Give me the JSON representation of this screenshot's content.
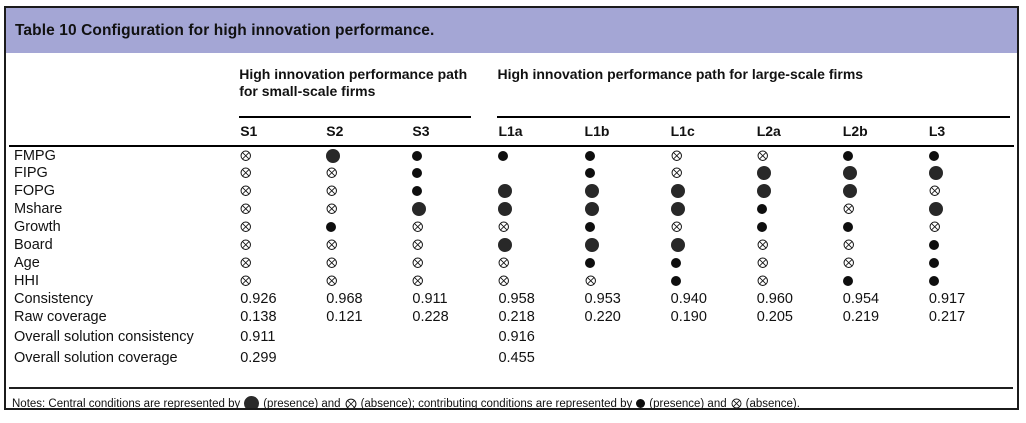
{
  "title": "Table 10 Configuration for high innovation performance.",
  "groups": [
    {
      "label": "High innovation performance path for small-scale firms",
      "span": 3
    },
    {
      "label": "High innovation performance path for large-scale firms",
      "span": 6
    }
  ],
  "columns": [
    "S1",
    "S2",
    "S3",
    "L1a",
    "L1b",
    "L1c",
    "L2a",
    "L2b",
    "L3"
  ],
  "symbol_legend": {
    "CP": "central-presence-icon",
    "CA": "central-absence-icon",
    "pp": "contributing-presence-icon",
    "pa": "contributing-absence-icon"
  },
  "rows": [
    {
      "label": "FMPG",
      "cells": [
        "pa",
        "CP",
        "pp",
        "pp",
        "pp",
        "pa",
        "pa",
        "pp",
        "pp"
      ]
    },
    {
      "label": "FIPG",
      "cells": [
        "pa",
        "pa",
        "pp",
        "",
        "pp",
        "pa",
        "CP",
        "CP",
        "CP"
      ]
    },
    {
      "label": "FOPG",
      "cells": [
        "pa",
        "pa",
        "pp",
        "CP",
        "CP",
        "CP",
        "CP",
        "CP",
        "pa"
      ]
    },
    {
      "label": "Mshare",
      "cells": [
        "pa",
        "pa",
        "CP",
        "CP",
        "CP",
        "CP",
        "pp",
        "pa",
        "CP"
      ]
    },
    {
      "label": "Growth",
      "cells": [
        "pa",
        "pp",
        "pa",
        "pa",
        "pp",
        "pa",
        "pp",
        "pp",
        "pa"
      ]
    },
    {
      "label": "Board",
      "cells": [
        "pa",
        "pa",
        "pa",
        "CP",
        "CP",
        "CP",
        "pa",
        "pa",
        "pp"
      ]
    },
    {
      "label": "Age",
      "cells": [
        "pa",
        "pa",
        "pa",
        "pa",
        "pp",
        "pp",
        "pa",
        "pa",
        "pp"
      ]
    },
    {
      "label": "HHI",
      "cells": [
        "pa",
        "pa",
        "pa",
        "pa",
        "pa",
        "pp",
        "pa",
        "pp",
        "pp"
      ]
    },
    {
      "label": "Consistency",
      "cells": [
        "0.926",
        "0.968",
        "0.911",
        "0.958",
        "0.953",
        "0.940",
        "0.960",
        "0.954",
        "0.917"
      ]
    },
    {
      "label": "Raw coverage",
      "cells": [
        "0.138",
        "0.121",
        "0.228",
        "0.218",
        "0.220",
        "0.190",
        "0.205",
        "0.219",
        "0.217"
      ]
    },
    {
      "label": "Overall solution consistency",
      "cells": [
        "0.911",
        "",
        "",
        "0.916",
        "",
        "",
        "",
        "",
        ""
      ]
    },
    {
      "label": "Overall solution coverage",
      "cells": [
        "0.299",
        "",
        "",
        "0.455",
        "",
        "",
        "",
        "",
        ""
      ]
    }
  ],
  "notes": {
    "seg1": "Notes: Central conditions are represented by",
    "seg2": "(presence) and",
    "seg3": "(absence); contributing conditions are represented by",
    "seg4": "(presence) and",
    "seg5": "(absence)."
  },
  "colors": {
    "header_band": "#a4a6d5",
    "border": "#1b1b1b",
    "symbol": "#1c1c1c"
  }
}
